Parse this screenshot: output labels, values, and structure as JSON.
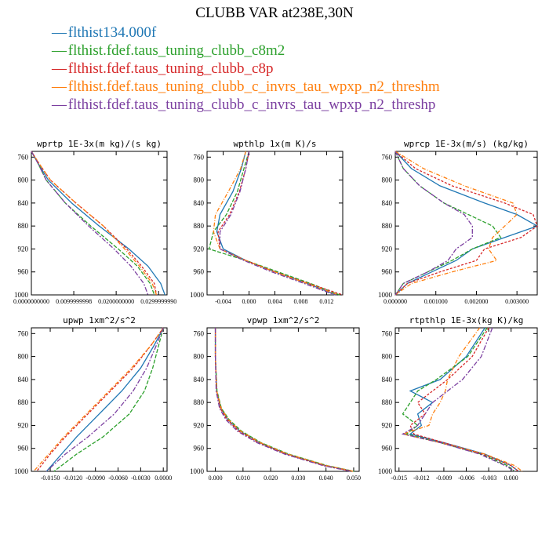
{
  "title": "CLUBB VAR at238E,30N",
  "legend": [
    {
      "name": "flthist134.000f",
      "color": "#1f77b4",
      "dash": "—"
    },
    {
      "name": "flthist.fdef.taus_tuning_clubb_c8m2",
      "color": "#2ca02c",
      "dash": "—"
    },
    {
      "name": "flthist.fdef.taus_tuning_clubb_c8p",
      "color": "#d62728",
      "dash": "—"
    },
    {
      "name": "flthist.fdef.taus_tuning_clubb_c_invrs_tau_wpxp_n2_threshm",
      "color": "#ff7f0e",
      "dash": "—"
    },
    {
      "name": "flthist.fdef.taus_tuning_clubb_c_invrs_tau_wpxp_n2_threshp",
      "color": "#7b3fa0",
      "dash": "—"
    }
  ],
  "chart_data": [
    {
      "type": "line",
      "title": "wprtp  1E-3x(m kg)/(s kg)",
      "y_ticks": [
        760,
        800,
        840,
        880,
        920,
        960,
        1000
      ],
      "ylim": [
        1000,
        750
      ],
      "xlim": [
        0.0,
        0.032
      ],
      "x_ticks": [
        0.0,
        0.01,
        0.02,
        0.03
      ],
      "x_tick_labels": [
        "0.0000000000",
        "0.0099999998",
        "0.0200000000",
        "0.0299999990"
      ],
      "y": [
        750,
        770,
        800,
        840,
        880,
        920,
        950,
        980,
        1000
      ],
      "series": [
        {
          "x": [
            0.0,
            0.0015,
            0.004,
            0.0095,
            0.016,
            0.023,
            0.0275,
            0.0305,
            0.0315
          ]
        },
        {
          "x": [
            0.0,
            0.0015,
            0.0035,
            0.008,
            0.014,
            0.0205,
            0.025,
            0.028,
            0.029
          ]
        },
        {
          "x": [
            0.0,
            0.0017,
            0.0045,
            0.0105,
            0.017,
            0.0225,
            0.026,
            0.029,
            0.0295
          ]
        },
        {
          "x": [
            0.0,
            0.0017,
            0.0045,
            0.0105,
            0.017,
            0.022,
            0.0255,
            0.0285,
            0.0295
          ]
        },
        {
          "x": [
            0.0,
            0.0015,
            0.0035,
            0.008,
            0.0135,
            0.0195,
            0.0235,
            0.0265,
            0.0275
          ]
        }
      ]
    },
    {
      "type": "line",
      "title": "wpthlp  1x(m K)/s",
      "y_ticks": [
        760,
        800,
        840,
        880,
        920,
        960,
        1000
      ],
      "ylim": [
        1000,
        750
      ],
      "xlim": [
        -0.0065,
        0.0145
      ],
      "x_ticks": [
        -0.004,
        0.0,
        0.004,
        0.008,
        0.012
      ],
      "x_tick_labels": [
        "-0.004",
        "0.000",
        "0.004",
        "0.008",
        "0.012"
      ],
      "y": [
        750,
        780,
        820,
        860,
        890,
        920,
        940,
        960,
        980,
        1000
      ],
      "series": [
        {
          "x": [
            -0.0005,
            -0.0012,
            -0.0025,
            -0.0045,
            -0.005,
            -0.004,
            -0.0005,
            0.004,
            0.009,
            0.0135
          ]
        },
        {
          "x": [
            0.0,
            -0.0008,
            -0.0018,
            -0.0035,
            -0.0055,
            -0.0062,
            -0.0005,
            0.0045,
            0.0095,
            0.014
          ]
        },
        {
          "x": [
            0.0,
            -0.0005,
            -0.0015,
            -0.003,
            -0.0048,
            -0.0045,
            -0.0005,
            0.004,
            0.0092,
            0.0145
          ]
        },
        {
          "x": [
            -0.0005,
            -0.0013,
            -0.0032,
            -0.0052,
            -0.0055,
            -0.0045,
            -0.0005,
            0.004,
            0.009,
            0.0138
          ]
        },
        {
          "x": [
            0.0,
            -0.0005,
            -0.0014,
            -0.0028,
            -0.0045,
            -0.0045,
            -0.0008,
            0.0035,
            0.0085,
            0.0133
          ]
        }
      ]
    },
    {
      "type": "line",
      "title": "wprcp  1E-3x(m/s) (kg/kg)",
      "y_ticks": [
        760,
        800,
        840,
        880,
        920,
        960,
        1000
      ],
      "ylim": [
        1000,
        750
      ],
      "xlim": [
        0.0,
        0.0035
      ],
      "x_ticks": [
        0.0,
        0.001,
        0.002,
        0.003
      ],
      "x_tick_labels": [
        "0.000000",
        "0.001000",
        "0.002000",
        "0.003000"
      ],
      "y": [
        750,
        780,
        810,
        840,
        860,
        880,
        900,
        920,
        940,
        960,
        980,
        1000
      ],
      "series": [
        {
          "x": [
            0.0,
            0.0004,
            0.0011,
            0.0022,
            0.003,
            0.0035,
            0.0027,
            0.0019,
            0.0015,
            0.0009,
            0.0003,
            0.0
          ]
        },
        {
          "x": [
            0.0,
            0.0002,
            0.0006,
            0.0012,
            0.0018,
            0.0024,
            0.0026,
            0.0019,
            0.0014,
            0.0008,
            0.0002,
            0.0
          ]
        },
        {
          "x": [
            0.0,
            0.0005,
            0.0014,
            0.0027,
            0.0034,
            0.0035,
            0.0031,
            0.0022,
            0.002,
            0.0011,
            0.0003,
            0.0
          ]
        },
        {
          "x": [
            0.0,
            0.0007,
            0.0017,
            0.0029,
            0.003,
            0.0027,
            0.0024,
            0.0023,
            0.0025,
            0.0014,
            0.0004,
            0.0
          ]
        },
        {
          "x": [
            0.0,
            0.0002,
            0.0006,
            0.0012,
            0.0017,
            0.0019,
            0.0019,
            0.0015,
            0.0013,
            0.0008,
            0.0002,
            0.0
          ]
        }
      ]
    },
    {
      "type": "line",
      "title": "upwp  1xm^2/s^2",
      "y_ticks": [
        760,
        800,
        840,
        880,
        920,
        960,
        1000
      ],
      "ylim": [
        1000,
        750
      ],
      "xlim": [
        -0.0175,
        0.0005
      ],
      "x_ticks": [
        -0.015,
        -0.012,
        -0.009,
        -0.006,
        -0.003,
        0.0
      ],
      "x_tick_labels": [
        "-0.0150",
        "-0.0120",
        "-0.0090",
        "-0.0060",
        "-0.0030",
        "0.0000"
      ],
      "y": [
        750,
        780,
        820,
        860,
        900,
        940,
        970,
        1000
      ],
      "series": [
        {
          "x": [
            0.0,
            -0.0012,
            -0.003,
            -0.0055,
            -0.0085,
            -0.0115,
            -0.0135,
            -0.0155
          ]
        },
        {
          "x": [
            0.0,
            -0.0006,
            -0.0014,
            -0.0025,
            -0.0045,
            -0.008,
            -0.0115,
            -0.0145
          ]
        },
        {
          "x": [
            0.0,
            -0.0016,
            -0.004,
            -0.007,
            -0.01,
            -0.013,
            -0.015,
            -0.0168
          ]
        },
        {
          "x": [
            0.0,
            -0.0016,
            -0.0042,
            -0.0072,
            -0.0102,
            -0.0132,
            -0.0152,
            -0.0172
          ]
        },
        {
          "x": [
            0.0,
            -0.0009,
            -0.0022,
            -0.004,
            -0.0065,
            -0.01,
            -0.013,
            -0.0155
          ]
        }
      ]
    },
    {
      "type": "line",
      "title": "vpwp  1xm^2/s^2",
      "y_ticks": [
        760,
        800,
        840,
        880,
        920,
        960,
        1000
      ],
      "ylim": [
        1000,
        750
      ],
      "xlim": [
        -0.003,
        0.052
      ],
      "x_ticks": [
        0.0,
        0.01,
        0.02,
        0.03,
        0.04,
        0.05
      ],
      "x_tick_labels": [
        "0.000",
        "0.010",
        "0.020",
        "0.030",
        "0.040",
        "0.050"
      ],
      "y": [
        750,
        800,
        860,
        890,
        910,
        930,
        950,
        970,
        990,
        1000
      ],
      "series": [
        {
          "x": [
            0.0,
            0.0,
            0.0005,
            0.002,
            0.0045,
            0.009,
            0.016,
            0.026,
            0.04,
            0.05
          ]
        },
        {
          "x": [
            0.0,
            0.0,
            0.0006,
            0.0022,
            0.005,
            0.0095,
            0.0165,
            0.0265,
            0.0405,
            0.0502
          ]
        },
        {
          "x": [
            0.0,
            0.0,
            0.0004,
            0.0018,
            0.0042,
            0.0085,
            0.0155,
            0.0255,
            0.0395,
            0.0495
          ]
        },
        {
          "x": [
            0.0,
            0.0,
            0.0005,
            0.0021,
            0.0047,
            0.0092,
            0.0162,
            0.0262,
            0.0402,
            0.05
          ]
        },
        {
          "x": [
            0.0,
            0.0,
            0.0003,
            0.0015,
            0.0038,
            0.008,
            0.015,
            0.025,
            0.039,
            0.049
          ]
        }
      ]
    },
    {
      "type": "line",
      "title": "rtpthlp  1E-3x(kg K)/kg",
      "y_ticks": [
        760,
        800,
        840,
        880,
        920,
        960,
        1000
      ],
      "ylim": [
        1000,
        750
      ],
      "xlim": [
        -0.0155,
        0.0035
      ],
      "x_ticks": [
        -0.015,
        -0.012,
        -0.009,
        -0.006,
        -0.003,
        0.0
      ],
      "x_tick_labels": [
        "-0.015",
        "-0.012",
        "-0.009",
        "-0.006",
        "-0.003",
        "0.000"
      ],
      "y": [
        750,
        800,
        840,
        860,
        880,
        900,
        920,
        935,
        950,
        970,
        990,
        1000
      ],
      "series": [
        {
          "x": [
            -0.0035,
            -0.006,
            -0.0095,
            -0.0135,
            -0.0105,
            -0.0125,
            -0.012,
            -0.0135,
            -0.009,
            -0.0035,
            0.0,
            0.001
          ]
        },
        {
          "x": [
            -0.0032,
            -0.0058,
            -0.01,
            -0.0125,
            -0.0135,
            -0.0145,
            -0.0125,
            -0.014,
            -0.0095,
            -0.004,
            -0.0005,
            0.0005
          ]
        },
        {
          "x": [
            -0.003,
            -0.0052,
            -0.0085,
            -0.0105,
            -0.0125,
            -0.0115,
            -0.0135,
            -0.013,
            -0.009,
            -0.0038,
            0.0,
            0.001
          ]
        },
        {
          "x": [
            -0.0042,
            -0.007,
            -0.0085,
            -0.0088,
            -0.0095,
            -0.0105,
            -0.011,
            -0.0145,
            -0.0095,
            -0.0035,
            0.0005,
            0.0015
          ]
        },
        {
          "x": [
            -0.0025,
            -0.004,
            -0.0065,
            -0.0085,
            -0.0105,
            -0.0115,
            -0.0125,
            -0.0145,
            -0.0095,
            -0.0042,
            -0.0008,
            0.0005
          ]
        }
      ]
    }
  ]
}
